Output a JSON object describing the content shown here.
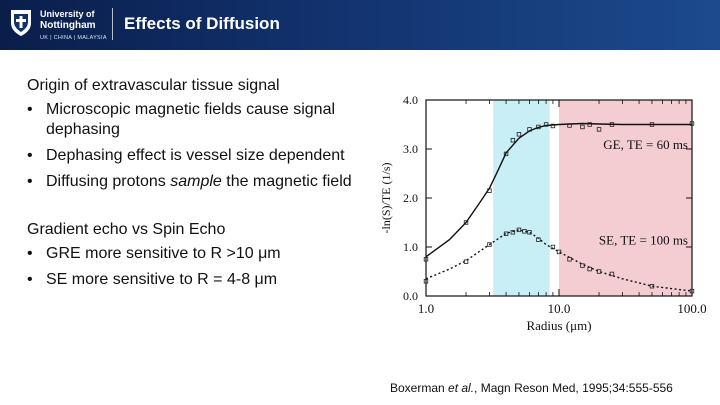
{
  "header": {
    "university_line1": "University of",
    "university_line2": "Nottingham",
    "university_line3": "UK | CHINA | MALAYSIA",
    "title": "Effects of Diffusion"
  },
  "content": {
    "heading1": "Origin of extravascular tissue signal",
    "bullets1": [
      "Microscopic magnetic fields cause signal dephasing",
      "Dephasing effect is vessel size dependent"
    ],
    "bullet3_prefix": "Diffusing protons ",
    "bullet3_emph": "sample",
    "bullet3_suffix": " the magnetic field",
    "heading2": "Gradient echo vs Spin Echo",
    "bullets2": [
      "GRE more sensitive to R >10 μm",
      "SE more sensitive to R = 4-8 μm"
    ]
  },
  "citation": {
    "author": "Boxerman ",
    "etal": "et al.",
    "rest": ", Magn Reson Med, 1995;34:555-556"
  },
  "colors": {
    "header_bg": "#12326e",
    "cyan_band": "#c8eef6",
    "pink_band": "#f3cdd2"
  },
  "chart_data": {
    "type": "line",
    "xlabel": "Radius (μm)",
    "ylabel": "-ln(S)/TE   (1/s)",
    "x_scale": "log",
    "xlim": [
      1.0,
      100.0
    ],
    "ylim": [
      0.0,
      4.0
    ],
    "x_ticks": [
      "1.0",
      "10.0",
      "100.0"
    ],
    "y_ticks": [
      "0.0",
      "1.0",
      "2.0",
      "3.0",
      "4.0"
    ],
    "shaded_regions": [
      {
        "from": 3.2,
        "to": 8.5,
        "color": "cyan"
      },
      {
        "from": 10.0,
        "to": 100.0,
        "color": "pink"
      }
    ],
    "series": [
      {
        "name": "GE, TE = 60 ms",
        "line_style": "solid",
        "x": [
          1.0,
          1.5,
          2.0,
          2.5,
          3.0,
          3.5,
          4.0,
          5.0,
          6.0,
          7.0,
          8.0,
          10.0,
          15.0,
          20.0,
          30.0,
          50.0,
          100.0
        ],
        "y": [
          0.8,
          1.15,
          1.5,
          1.88,
          2.2,
          2.58,
          2.92,
          3.22,
          3.37,
          3.44,
          3.48,
          3.5,
          3.52,
          3.51,
          3.5,
          3.5,
          3.5
        ],
        "points_x": [
          1.0,
          2.0,
          3.0,
          4.0,
          4.5,
          5.0,
          6.0,
          7.0,
          8.0,
          9.0,
          12.0,
          15.0,
          17.0,
          20.0,
          25.0,
          50.0,
          100.0
        ],
        "points_y": [
          0.75,
          1.5,
          2.15,
          2.9,
          3.18,
          3.3,
          3.4,
          3.45,
          3.5,
          3.47,
          3.48,
          3.45,
          3.5,
          3.4,
          3.5,
          3.5,
          3.52
        ]
      },
      {
        "name": "SE, TE = 100 ms",
        "line_style": "dotted",
        "x": [
          1.0,
          1.5,
          2.0,
          3.0,
          4.0,
          5.0,
          6.0,
          7.0,
          8.0,
          10.0,
          15.0,
          20.0,
          30.0,
          50.0,
          100.0
        ],
        "y": [
          0.35,
          0.55,
          0.72,
          1.05,
          1.28,
          1.35,
          1.3,
          1.18,
          1.05,
          0.9,
          0.65,
          0.5,
          0.35,
          0.2,
          0.1
        ],
        "points_x": [
          1.0,
          2.0,
          3.0,
          4.0,
          4.5,
          5.0,
          5.5,
          6.0,
          7.0,
          9.0,
          10.0,
          12.0,
          15.0,
          17.0,
          20.0,
          25.0,
          50.0,
          100.0
        ],
        "points_y": [
          0.3,
          0.7,
          1.05,
          1.27,
          1.3,
          1.35,
          1.32,
          1.3,
          1.15,
          1.0,
          0.9,
          0.75,
          0.62,
          0.55,
          0.5,
          0.45,
          0.2,
          0.1
        ]
      }
    ]
  }
}
